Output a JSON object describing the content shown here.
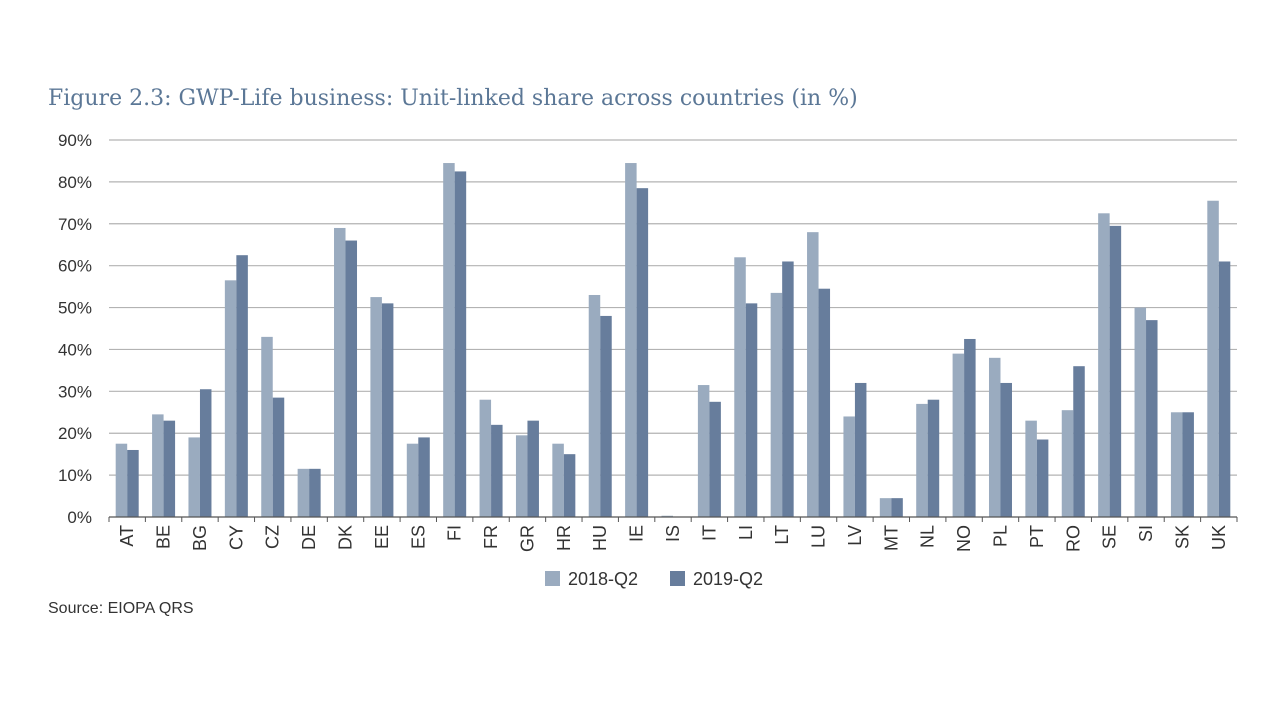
{
  "chart_data": {
    "type": "bar",
    "title": "Figure 2.3: GWP-Life business: Unit-linked share across countries (in %)",
    "categories": [
      "AT",
      "BE",
      "BG",
      "CY",
      "CZ",
      "DE",
      "DK",
      "EE",
      "ES",
      "FI",
      "FR",
      "GR",
      "HR",
      "HU",
      "IE",
      "IS",
      "IT",
      "LI",
      "LT",
      "LU",
      "LV",
      "MT",
      "NL",
      "NO",
      "PL",
      "PT",
      "RO",
      "SE",
      "SI",
      "SK",
      "UK"
    ],
    "series": [
      {
        "name": "2018-Q2",
        "color": "#9aabbf",
        "values": [
          17.5,
          24.5,
          19,
          56.5,
          43,
          11.5,
          69,
          52.5,
          17.5,
          84.5,
          28,
          19.5,
          17.5,
          53,
          84.5,
          0.3,
          31.5,
          62,
          53.5,
          68,
          24,
          4.5,
          27,
          39,
          38,
          23,
          25.5,
          72.5,
          50,
          25,
          75.5
        ]
      },
      {
        "name": "2019-Q2",
        "color": "#677d9c",
        "values": [
          16,
          23,
          30.5,
          62.5,
          28.5,
          11.5,
          66,
          51,
          19,
          82.5,
          22,
          23,
          15,
          48,
          78.5,
          0,
          27.5,
          51,
          61,
          54.5,
          32,
          4.5,
          28,
          42.5,
          32,
          18.5,
          36,
          69.5,
          47,
          25,
          61
        ]
      }
    ],
    "ylim": [
      0,
      90
    ],
    "yticks": [
      "0%",
      "10%",
      "20%",
      "30%",
      "40%",
      "50%",
      "60%",
      "70%",
      "80%",
      "90%"
    ],
    "grid": true,
    "legend": "bottom-center"
  },
  "source": "Source: EIOPA QRS"
}
